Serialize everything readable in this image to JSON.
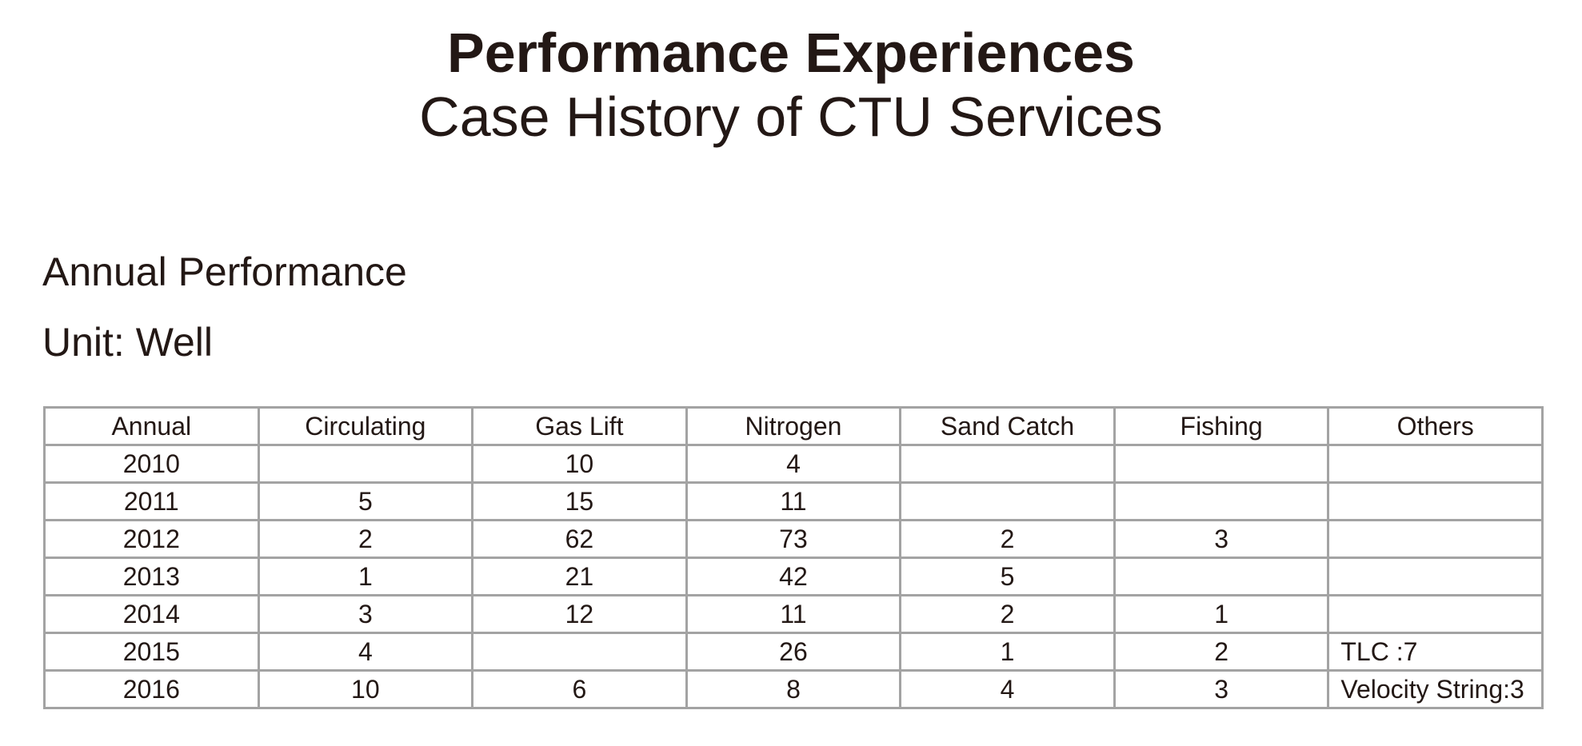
{
  "header": {
    "title": "Performance Experiences",
    "subtitle": "Case History of CTU Services"
  },
  "section": {
    "heading": "Annual Performance",
    "unit": "Unit: Well"
  },
  "table": {
    "columns": [
      "Annual",
      "Circulating",
      "Gas Lift",
      "Nitrogen",
      "Sand Catch",
      "Fishing",
      "Others"
    ],
    "rows": [
      [
        "2010",
        "",
        "10",
        "4",
        "",
        "",
        ""
      ],
      [
        "2011",
        "5",
        "15",
        "11",
        "",
        "",
        ""
      ],
      [
        "2012",
        "2",
        "62",
        "73",
        "2",
        "3",
        ""
      ],
      [
        "2013",
        "1",
        "21",
        "42",
        "5",
        "",
        ""
      ],
      [
        "2014",
        "3",
        "12",
        "11",
        "2",
        "1",
        ""
      ],
      [
        "2015",
        "4",
        "",
        "26",
        "1",
        "2",
        "TLC :7"
      ],
      [
        "2016",
        "10",
        "6",
        "8",
        "4",
        "3",
        "Velocity String:3"
      ]
    ]
  }
}
